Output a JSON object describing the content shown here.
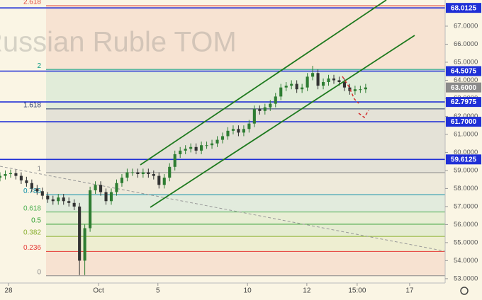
{
  "chart_data": {
    "type": "candlestick",
    "watermark": "Russian Ruble TOM",
    "open": [
      58.6,
      58.7,
      58.8,
      58.85,
      58.7,
      58.45,
      58.3,
      58.0,
      57.85,
      57.6,
      57.4,
      57.3,
      57.5,
      57.3,
      57.2,
      57.0,
      54.0,
      55.8,
      57.9,
      58.2,
      57.8,
      57.3,
      57.8,
      58.3,
      58.6,
      58.9,
      58.9,
      58.8,
      58.9,
      58.8,
      58.7,
      58.2,
      58.6,
      59.2,
      59.9,
      60.1,
      60.2,
      60.3,
      60.1,
      60.4,
      60.4,
      60.5,
      60.7,
      60.9,
      61.2,
      61.3,
      61.1,
      61.3,
      61.6,
      62.4,
      62.3,
      62.5,
      62.7,
      63.1,
      63.6,
      63.7,
      63.8,
      63.5,
      63.6,
      64.2,
      64.4,
      63.7,
      63.9,
      64.1,
      64.0,
      63.9,
      63.6,
      63.4,
      63.5,
      63.5
    ],
    "high": [
      58.9,
      59.0,
      59.05,
      59.05,
      58.9,
      58.65,
      58.5,
      58.2,
      58.05,
      57.8,
      57.6,
      57.7,
      57.7,
      57.5,
      57.4,
      57.2,
      56.0,
      58.1,
      58.4,
      58.4,
      58.0,
      58.0,
      58.5,
      58.8,
      59.1,
      59.1,
      59.1,
      59.1,
      59.1,
      59.0,
      58.9,
      58.8,
      59.4,
      60.1,
      60.3,
      60.4,
      60.5,
      60.5,
      60.6,
      60.6,
      60.7,
      60.9,
      61.1,
      61.4,
      61.5,
      61.5,
      61.5,
      61.8,
      62.6,
      62.6,
      62.7,
      62.9,
      63.3,
      63.8,
      63.9,
      64.0,
      64.0,
      63.8,
      64.4,
      64.8,
      64.6,
      64.1,
      64.3,
      64.3,
      64.2,
      64.1,
      63.8,
      63.7,
      63.7,
      63.8
    ],
    "low": [
      58.4,
      58.5,
      58.6,
      58.5,
      58.25,
      58.1,
      57.8,
      57.65,
      57.4,
      57.2,
      57.1,
      57.1,
      57.1,
      57.0,
      56.8,
      53.2,
      53.2,
      55.6,
      57.7,
      57.6,
      57.1,
      57.1,
      57.6,
      58.1,
      58.4,
      58.7,
      58.6,
      58.6,
      58.6,
      58.5,
      58.0,
      58.0,
      58.4,
      59.0,
      59.7,
      59.9,
      60.0,
      59.9,
      59.9,
      60.2,
      60.2,
      60.3,
      60.5,
      60.7,
      61.0,
      60.9,
      60.9,
      61.1,
      61.4,
      62.1,
      62.1,
      62.3,
      62.5,
      62.9,
      63.4,
      63.5,
      63.3,
      63.3,
      63.4,
      64.0,
      63.5,
      63.5,
      63.7,
      63.8,
      63.7,
      63.4,
      63.2,
      63.2,
      63.3,
      63.3
    ],
    "close": [
      58.7,
      58.8,
      58.85,
      58.7,
      58.45,
      58.3,
      58.0,
      57.85,
      57.6,
      57.4,
      57.3,
      57.5,
      57.3,
      57.2,
      57.0,
      54.0,
      55.8,
      57.9,
      58.2,
      57.8,
      57.3,
      57.8,
      58.3,
      58.6,
      58.9,
      58.9,
      58.8,
      58.9,
      58.8,
      58.7,
      58.2,
      58.6,
      59.2,
      59.9,
      60.1,
      60.2,
      60.3,
      60.1,
      60.4,
      60.4,
      60.5,
      60.7,
      60.9,
      61.2,
      61.3,
      61.1,
      61.3,
      61.6,
      62.4,
      62.3,
      62.5,
      62.7,
      63.1,
      63.6,
      63.7,
      63.8,
      63.5,
      63.6,
      64.2,
      64.4,
      63.7,
      63.9,
      64.1,
      64.0,
      63.9,
      63.6,
      63.4,
      63.5,
      63.5,
      63.6
    ],
    "up_color": "#2e7d32",
    "down_color": "#333333",
    "xlim": [
      0,
      84
    ],
    "xticks": [
      {
        "value": 1.6,
        "label": "28"
      },
      {
        "value": 18.6,
        "label": "Oct"
      },
      {
        "value": 29.8,
        "label": "5"
      },
      {
        "value": 46.7,
        "label": "10"
      },
      {
        "value": 57.9,
        "label": "12"
      },
      {
        "value": 67.4,
        "label": "15:00"
      },
      {
        "value": 77.3,
        "label": "17"
      }
    ],
    "ylim": [
      52.76,
      68.45
    ],
    "yticks": [
      {
        "value": 53,
        "label": "53.0000"
      },
      {
        "value": 54,
        "label": "54.0000"
      },
      {
        "value": 55,
        "label": "55.0000"
      },
      {
        "value": 56,
        "label": "56.0000"
      },
      {
        "value": 57,
        "label": "57.0000"
      },
      {
        "value": 58,
        "label": "58.0000"
      },
      {
        "value": 59,
        "label": "59.0000"
      },
      {
        "value": 60,
        "label": "60.0000"
      },
      {
        "value": 61,
        "label": "61.0000"
      },
      {
        "value": 62,
        "label": "62.0000"
      },
      {
        "value": 63,
        "label": "63.0000"
      },
      {
        "value": 64,
        "label": "64.0000"
      },
      {
        "value": 65,
        "label": "65.0000"
      },
      {
        "value": 66,
        "label": "66.0000"
      },
      {
        "value": 67,
        "label": "67.0000"
      }
    ],
    "price_lines": [
      {
        "value": 68.0125
      },
      {
        "value": 64.5075
      },
      {
        "value": 62.7975
      },
      {
        "value": {
          "value": 61.7,
          "label": "61.7000"
        }
      },
      {
        "value": 59.6125
      }
    ],
    "price_line_color": "#1f2fd6",
    "last_price": {
      "value": 63.6,
      "label": "63.6000"
    },
    "last_price_color": "#8a8a8a",
    "fib": {
      "low": 53.16,
      "high": 58.88,
      "levels": [
        2.618,
        2,
        1.618,
        1,
        0.786,
        0.618,
        0.5,
        0.382,
        0.236,
        0
      ],
      "colors": [
        "#e0463a",
        "#089981",
        "#2a3a6a",
        "#8a8a8a",
        "#0f8fa8",
        "#4caf50",
        "#2e9e2e",
        "#8ab030",
        "#e53935",
        "#8a8a8a"
      ]
    }
  }
}
